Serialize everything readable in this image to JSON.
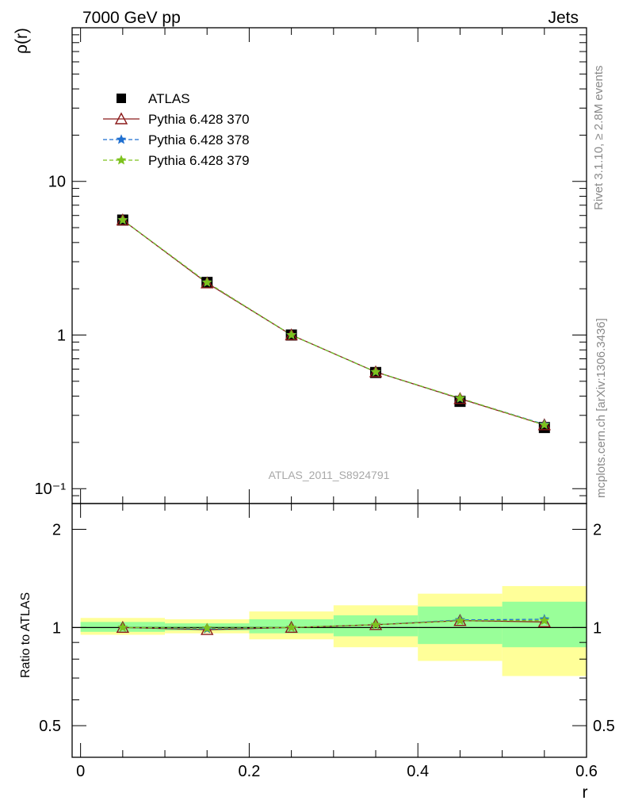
{
  "header": {
    "left": "7000 GeV pp",
    "right": "Jets"
  },
  "side_text": {
    "top": "Rivet 3.1.10, ≥ 2.8M events",
    "bottom": "mcplots.cern.ch [arXiv:1306.3436]"
  },
  "watermark": "ATLAS_2011_S8924791",
  "chart_data": {
    "type": "line",
    "ylabel_main": "ρ(r)",
    "ylabel_ratio": "Ratio to ATLAS",
    "xlabel": "r",
    "xlim": [
      -0.01,
      0.6
    ],
    "ylim_main": [
      0.08,
      100
    ],
    "yscale_main": "log",
    "ylim_ratio": [
      0.4,
      2.4
    ],
    "yscale_ratio": "log",
    "x_ticks": [
      0,
      0.2,
      0.4,
      0.6
    ],
    "x_tick_labels": [
      "0",
      "0.2",
      "0.4",
      "0.6"
    ],
    "y_ticks_main": [
      0.1,
      1,
      10
    ],
    "y_tick_labels_main": [
      "10⁻¹",
      "1",
      "10"
    ],
    "y_ticks_ratio": [
      0.5,
      1,
      2
    ],
    "y_tick_labels_ratio": [
      "0.5",
      "1",
      "2"
    ],
    "legend_placement": "top-left",
    "x": [
      0.05,
      0.15,
      0.25,
      0.35,
      0.45,
      0.55
    ],
    "bin_edges": [
      0,
      0.1,
      0.2,
      0.3,
      0.4,
      0.5,
      0.6
    ],
    "series": [
      {
        "name": "ATLAS",
        "values": [
          5.6,
          2.2,
          1.0,
          0.57,
          0.37,
          0.25
        ],
        "ratio": [
          1,
          1,
          1,
          1,
          1,
          1
        ],
        "color": "#000000",
        "marker": "square",
        "dash": ""
      },
      {
        "name": "Pythia 6.428 370",
        "values": [
          5.6,
          2.18,
          1.0,
          0.575,
          0.385,
          0.26
        ],
        "ratio": [
          1.0,
          0.985,
          1.0,
          1.02,
          1.05,
          1.04
        ],
        "color": "#8b1a1a",
        "marker": "triangle",
        "dash": ""
      },
      {
        "name": "Pythia 6.428 378",
        "values": [
          5.6,
          2.2,
          1.0,
          0.575,
          0.387,
          0.262
        ],
        "ratio": [
          1.0,
          0.99,
          1.0,
          1.02,
          1.055,
          1.06
        ],
        "color": "#1f6fd0",
        "marker": "star",
        "dash": "5,3"
      },
      {
        "name": "Pythia 6.428 379",
        "values": [
          5.6,
          2.2,
          1.0,
          0.575,
          0.388,
          0.26
        ],
        "ratio": [
          1.0,
          0.995,
          1.0,
          1.02,
          1.05,
          1.05
        ],
        "color": "#7dc21e",
        "marker": "star",
        "dash": "5,3"
      }
    ],
    "uncertainty_bands": {
      "inner_color": "#99ff99",
      "outer_color": "#ffff99",
      "inner": [
        [
          0.97,
          1.04
        ],
        [
          0.98,
          1.03
        ],
        [
          0.96,
          1.06
        ],
        [
          0.94,
          1.09
        ],
        [
          0.89,
          1.16
        ],
        [
          0.87,
          1.2
        ]
      ],
      "outer": [
        [
          0.95,
          1.07
        ],
        [
          0.96,
          1.06
        ],
        [
          0.92,
          1.12
        ],
        [
          0.87,
          1.17
        ],
        [
          0.79,
          1.27
        ],
        [
          0.71,
          1.34
        ]
      ]
    }
  }
}
